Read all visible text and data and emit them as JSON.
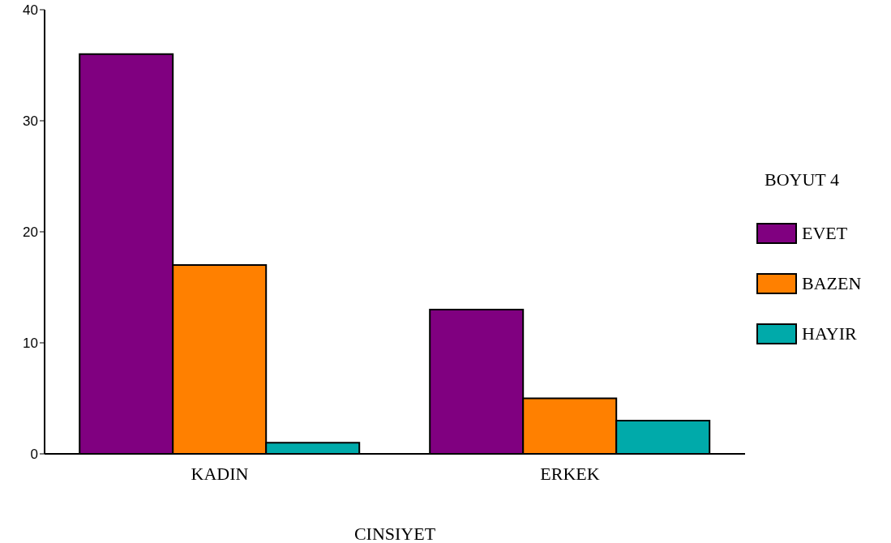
{
  "chart_data": {
    "type": "bar",
    "xlabel": "CINSIYET",
    "legend_title": "BOYUT 4",
    "categories": [
      "KADIN",
      "ERKEK"
    ],
    "series": [
      {
        "name": "EVET",
        "color": "#800080",
        "values": [
          36,
          13
        ]
      },
      {
        "name": "BAZEN",
        "color": "#ff8000",
        "values": [
          17,
          5
        ]
      },
      {
        "name": "HAYIR",
        "color": "#00aaaa",
        "values": [
          1,
          3
        ]
      }
    ],
    "ylim": [
      0,
      40
    ],
    "yticks": [
      0,
      10,
      20,
      30,
      40
    ],
    "grid": false,
    "legend": "right"
  }
}
